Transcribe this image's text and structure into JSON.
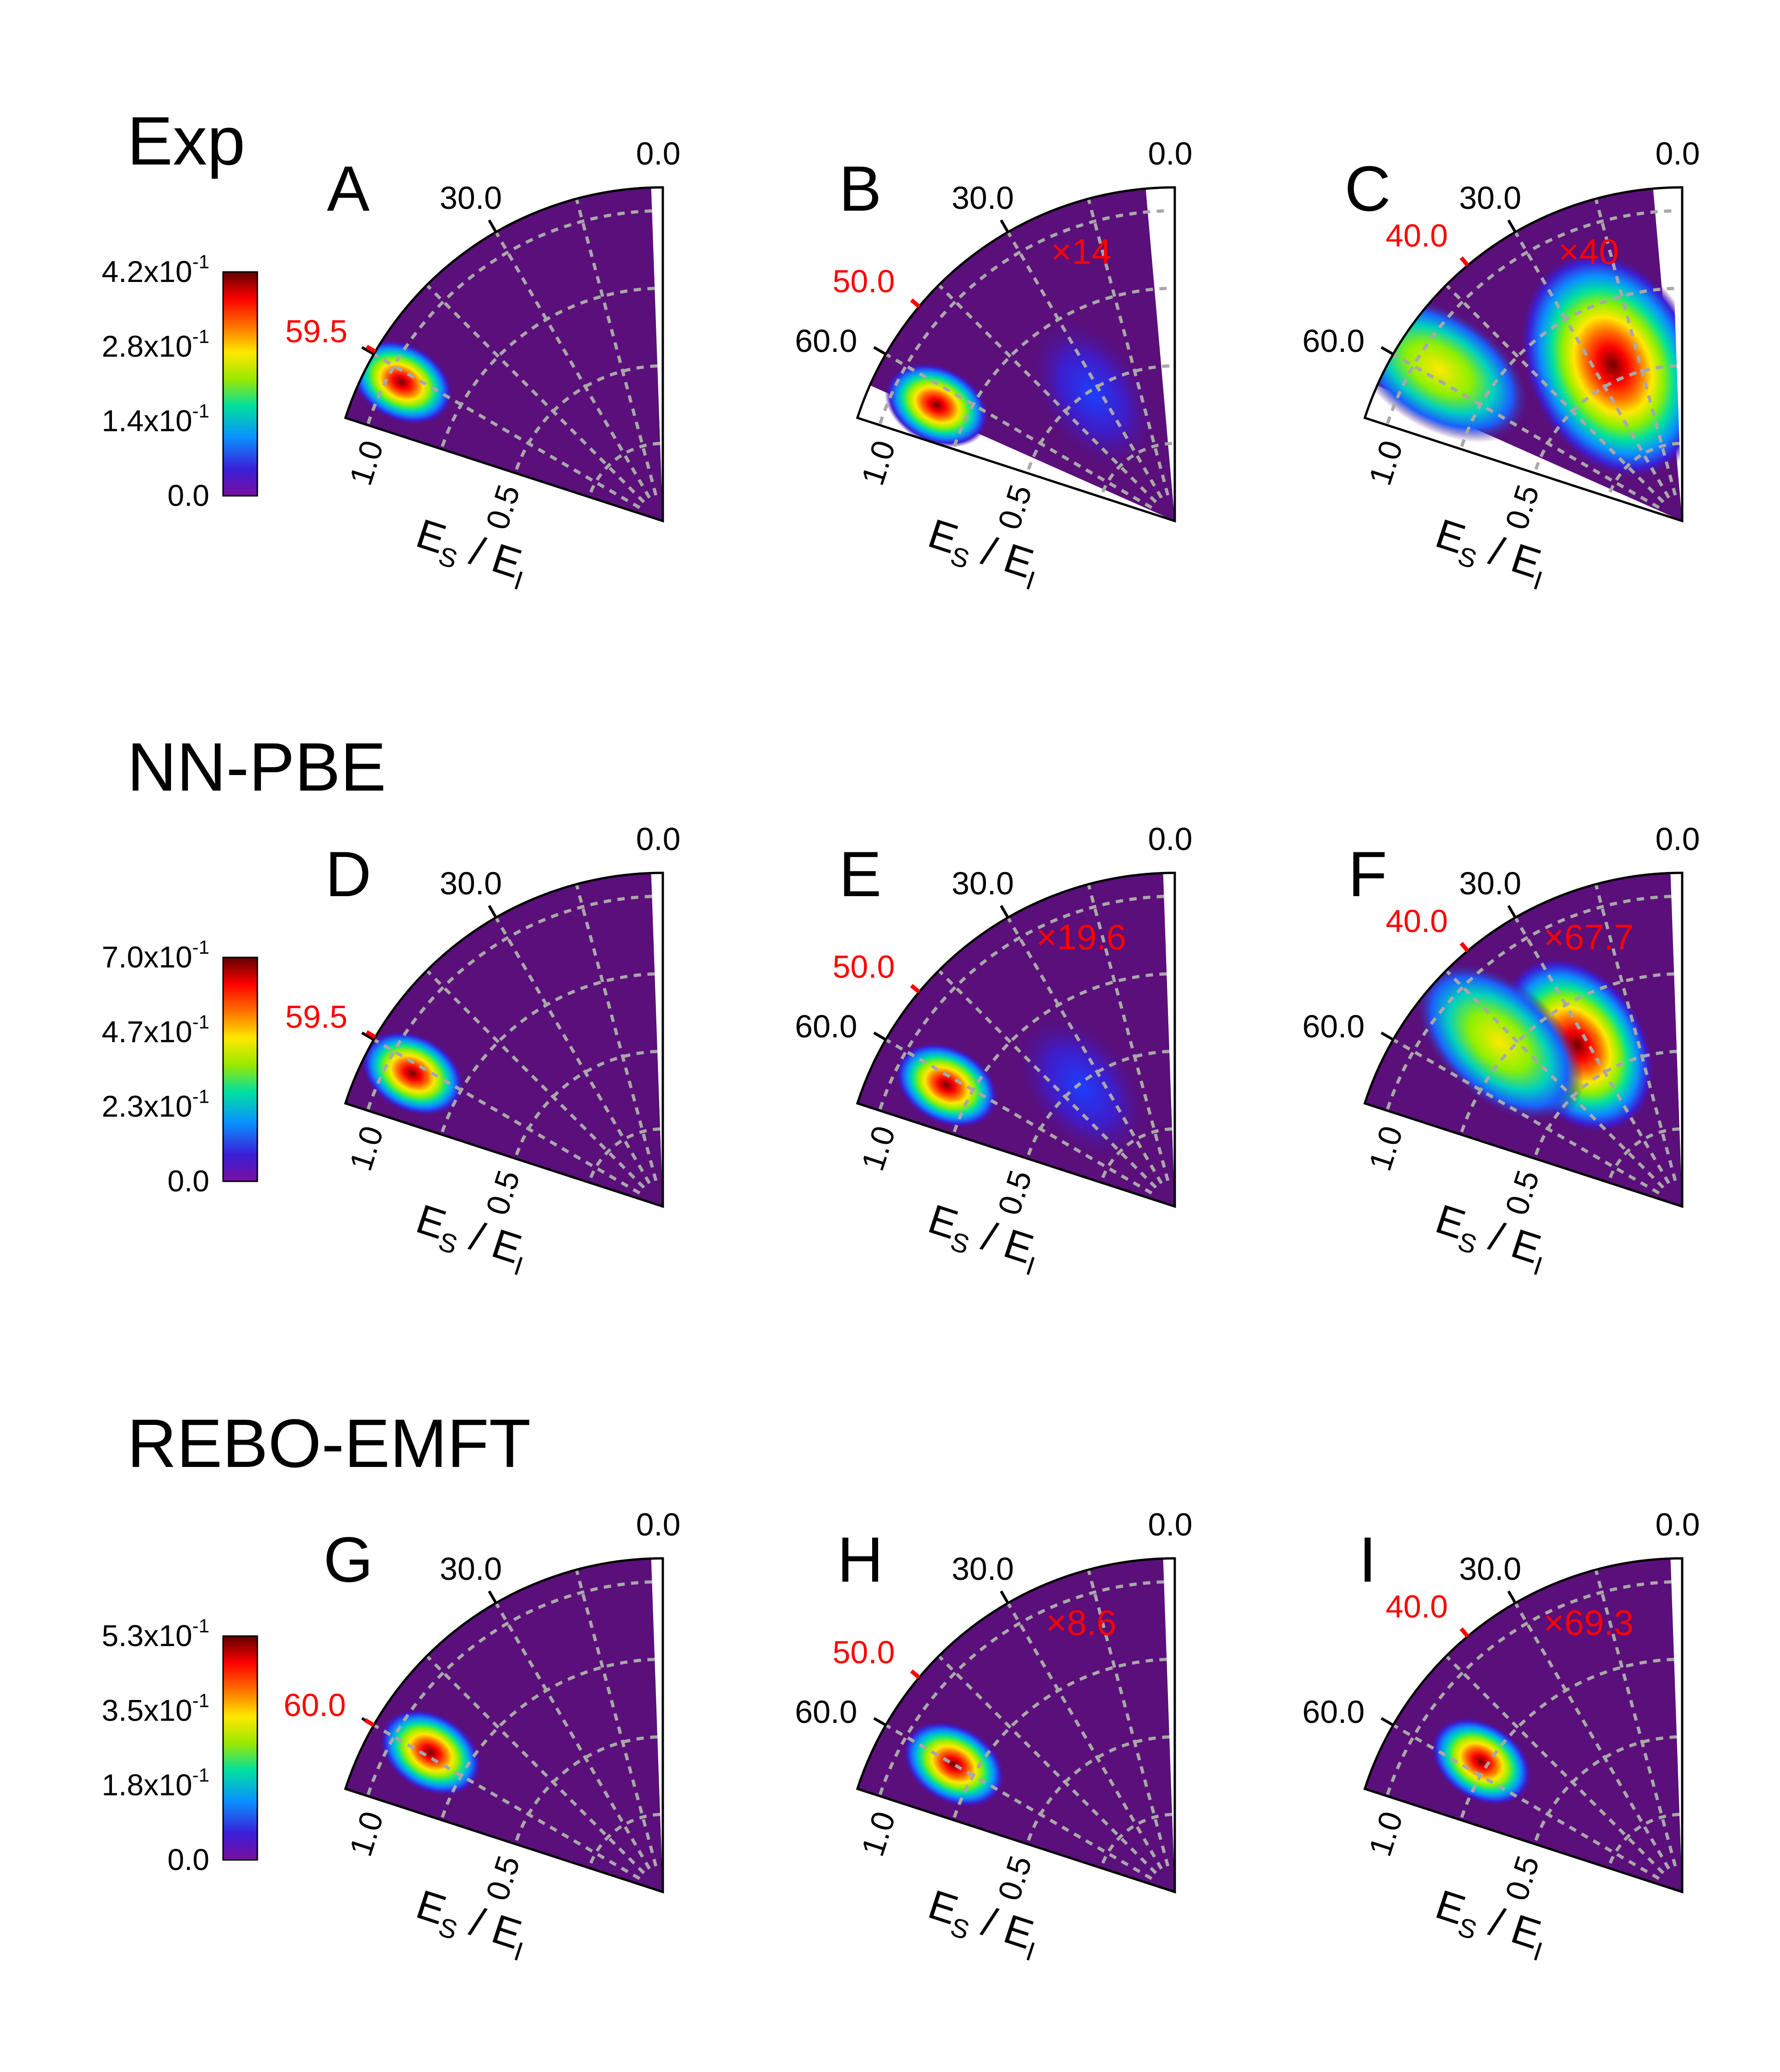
{
  "chart_data": {
    "type": "heatmap",
    "layout": "3x3 grid of polar quarter-sector heatmaps",
    "angle_tick_labels": [
      "0.0",
      "30.0",
      "60.0"
    ],
    "radial_tick_labels": [
      "1.0",
      "0.5"
    ],
    "radial_axis_title": {
      "main_1": "E",
      "sub_1": "S",
      "slash": "/",
      "main_2": "E",
      "sub_2": "I"
    },
    "rows": [
      {
        "title": "Exp",
        "colorbar": {
          "min": 0.0,
          "max": 0.42,
          "tick_labels": [
            {
              "mantissa": "4.2x10",
              "exp": "-1"
            },
            {
              "mantissa": "2.8x10",
              "exp": "-1"
            },
            {
              "mantissa": "1.4x10",
              "exp": "-1"
            },
            {
              "mantissa": "0.0",
              "exp": ""
            }
          ]
        },
        "panels": [
          {
            "label": "A",
            "incidence_angle_label": "59.5",
            "incidence_angle": 59.5,
            "scale_factor": "",
            "peaks": [
              {
                "angle": 62,
                "energy_ratio": 0.88,
                "intensity": 1.0
              }
            ]
          },
          {
            "label": "B",
            "incidence_angle_label": "50.0",
            "incidence_angle": 50.0,
            "scale_factor": "×14",
            "peaks": [
              {
                "angle": 64,
                "energy_ratio": 0.78,
                "intensity": 1.0
              },
              {
                "angle": 33,
                "energy_ratio": 0.42,
                "intensity": 0.25
              }
            ]
          },
          {
            "label": "C",
            "incidence_angle_label": "40.0",
            "incidence_angle": 40.0,
            "scale_factor": "×40",
            "peaks": [
              {
                "angle": 24,
                "energy_ratio": 0.48,
                "intensity": 1.0
              },
              {
                "angle": 58,
                "energy_ratio": 0.85,
                "intensity": 0.5
              }
            ]
          }
        ]
      },
      {
        "title": "NN-PBE",
        "colorbar": {
          "min": 0.0,
          "max": 0.7,
          "tick_labels": [
            {
              "mantissa": "7.0x10",
              "exp": "-1"
            },
            {
              "mantissa": "4.7x10",
              "exp": "-1"
            },
            {
              "mantissa": "2.3x10",
              "exp": "-1"
            },
            {
              "mantissa": "0.0",
              "exp": ""
            }
          ]
        },
        "panels": [
          {
            "label": "D",
            "incidence_angle_label": "59.5",
            "incidence_angle": 59.5,
            "scale_factor": "",
            "peaks": [
              {
                "angle": 62,
                "energy_ratio": 0.84,
                "intensity": 1.0
              }
            ]
          },
          {
            "label": "E",
            "incidence_angle_label": "50.0",
            "incidence_angle": 50.0,
            "scale_factor": "×19.6",
            "peaks": [
              {
                "angle": 62,
                "energy_ratio": 0.76,
                "intensity": 1.0
              },
              {
                "angle": 38,
                "energy_ratio": 0.42,
                "intensity": 0.15
              }
            ]
          },
          {
            "label": "F",
            "incidence_angle_label": "40.0",
            "incidence_angle": 40.0,
            "scale_factor": "×67.7",
            "peaks": [
              {
                "angle": 33,
                "energy_ratio": 0.55,
                "intensity": 1.0
              },
              {
                "angle": 48,
                "energy_ratio": 0.72,
                "intensity": 0.4
              }
            ]
          }
        ]
      },
      {
        "title": "REBO-EMFT",
        "colorbar": {
          "min": 0.0,
          "max": 0.53,
          "tick_labels": [
            {
              "mantissa": "5.3x10",
              "exp": "-1"
            },
            {
              "mantissa": "3.5x10",
              "exp": "-1"
            },
            {
              "mantissa": "1.8x10",
              "exp": "-1"
            },
            {
              "mantissa": "0.0",
              "exp": ""
            }
          ]
        },
        "panels": [
          {
            "label": "G",
            "incidence_angle_label": "60.0",
            "incidence_angle": 60.0,
            "scale_factor": "",
            "peaks": [
              {
                "angle": 59,
                "energy_ratio": 0.8,
                "intensity": 1.0
              }
            ]
          },
          {
            "label": "H",
            "incidence_angle_label": "50.0",
            "incidence_angle": 50.0,
            "scale_factor": "×8.6",
            "peaks": [
              {
                "angle": 60,
                "energy_ratio": 0.75,
                "intensity": 1.0
              }
            ]
          },
          {
            "label": "I",
            "incidence_angle_label": "40.0",
            "incidence_angle": 40.0,
            "scale_factor": "×69.3",
            "peaks": [
              {
                "angle": 57,
                "energy_ratio": 0.7,
                "intensity": 1.0
              }
            ]
          }
        ]
      }
    ]
  },
  "colors": {
    "background": "#5a0f7a",
    "grid": "#a8a8a8",
    "annotation": "#ff0000"
  }
}
